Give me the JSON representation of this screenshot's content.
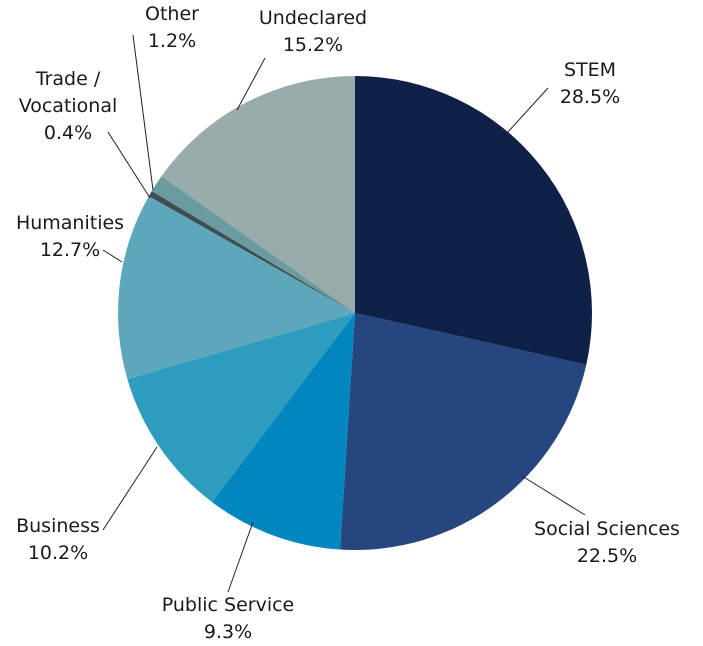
{
  "chart_data": {
    "type": "pie",
    "categories": [
      "STEM",
      "Social Sciences",
      "Public Service",
      "Business",
      "Humanities",
      "Trade / Vocational",
      "Other",
      "Undeclared"
    ],
    "values": [
      28.5,
      22.5,
      9.3,
      10.2,
      12.7,
      0.4,
      1.2,
      15.2
    ],
    "value_labels": [
      "28.5%",
      "22.5%",
      "9.3%",
      "10.2%",
      "12.7%",
      "0.4%",
      "1.2%",
      "15.2%"
    ],
    "colors": [
      "#0f2147",
      "#26467f",
      "#0087c0",
      "#2e9cbf",
      "#5ea7bb",
      "#3f4d55",
      "#6a9b9e",
      "#9aabab"
    ]
  }
}
